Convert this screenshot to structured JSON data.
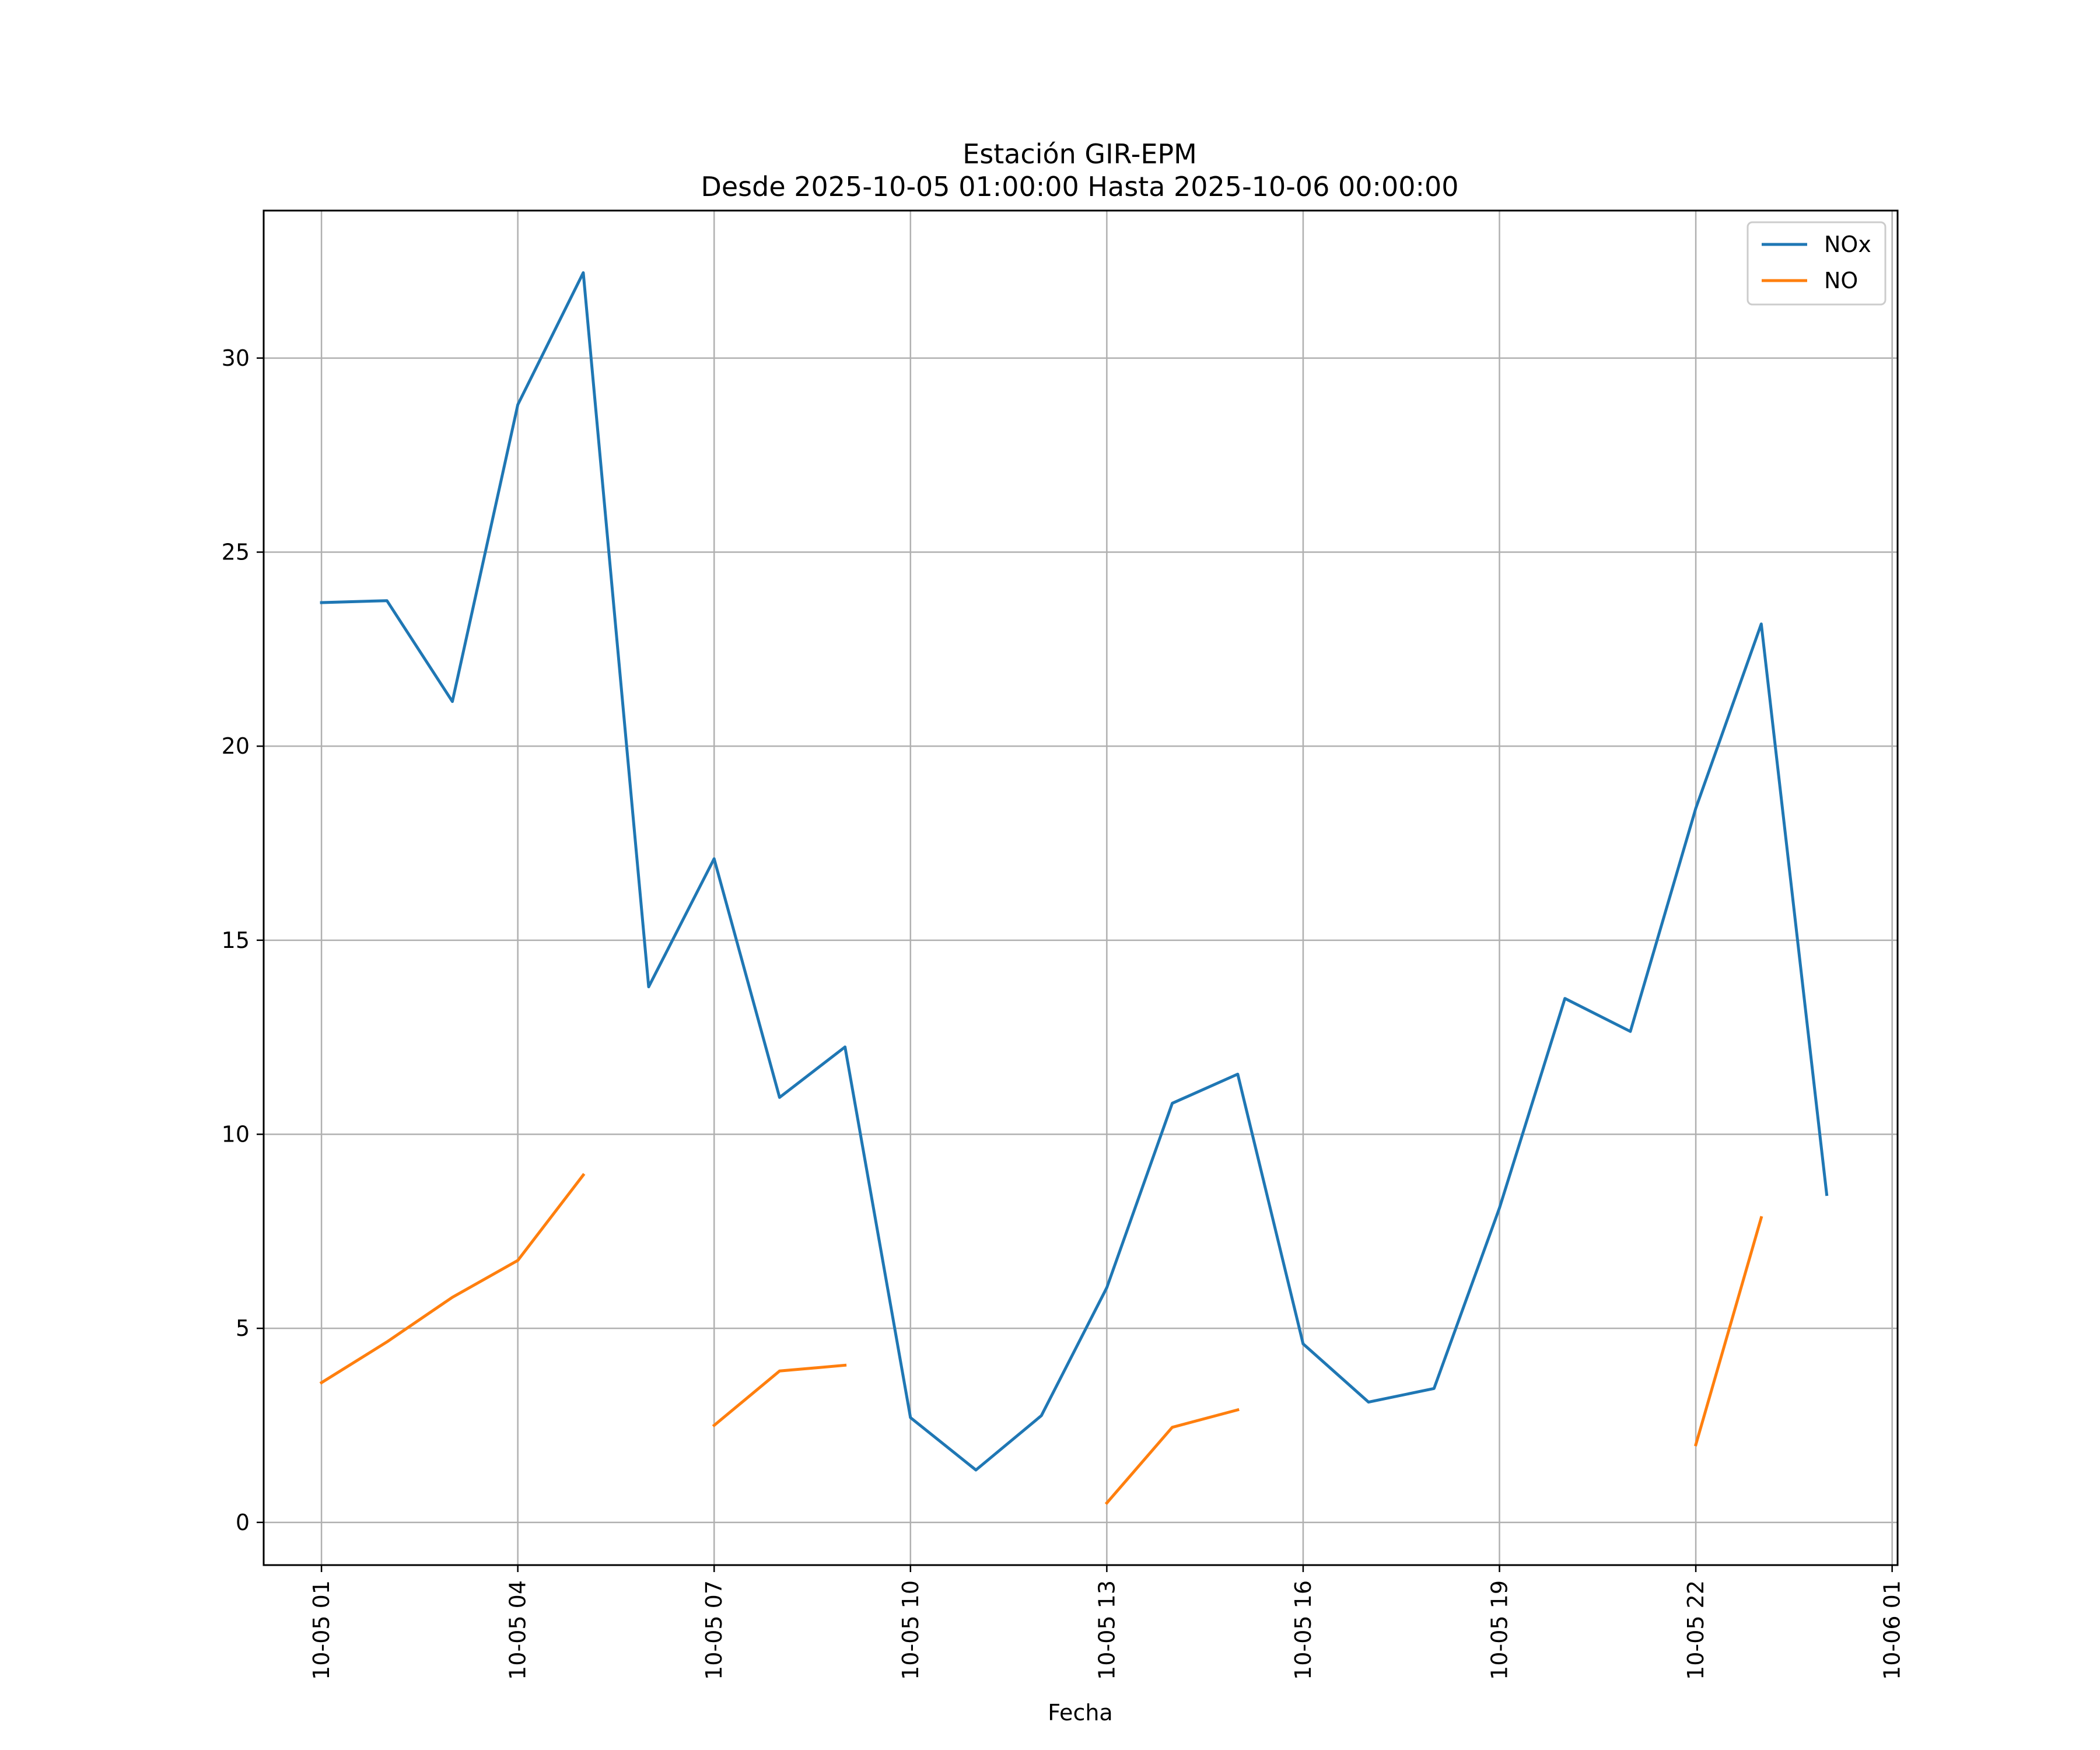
{
  "chart_data": {
    "type": "line",
    "title": "Estación GIR-EPM",
    "subtitle": "Desde 2025-10-05 01:00:00 Hasta 2025-10-06 00:00:00",
    "xlabel": "Fecha",
    "ylabel": "",
    "x": [
      "2025-10-05 01:00",
      "2025-10-05 02:00",
      "2025-10-05 03:00",
      "2025-10-05 04:00",
      "2025-10-05 05:00",
      "2025-10-05 06:00",
      "2025-10-05 07:00",
      "2025-10-05 08:00",
      "2025-10-05 09:00",
      "2025-10-05 10:00",
      "2025-10-05 11:00",
      "2025-10-05 12:00",
      "2025-10-05 13:00",
      "2025-10-05 14:00",
      "2025-10-05 15:00",
      "2025-10-05 16:00",
      "2025-10-05 17:00",
      "2025-10-05 18:00",
      "2025-10-05 19:00",
      "2025-10-05 20:00",
      "2025-10-05 21:00",
      "2025-10-05 22:00",
      "2025-10-05 23:00",
      "2025-10-06 00:00"
    ],
    "xlim": [
      "2025-10-05 00:07",
      "2025-10-06 01:05"
    ],
    "ylim": [
      -1.1,
      33.8
    ],
    "x_ticks": [
      "10-05 01",
      "10-05 04",
      "10-05 07",
      "10-05 10",
      "10-05 13",
      "10-05 16",
      "10-05 19",
      "10-05 22",
      "10-06 01"
    ],
    "y_ticks": [
      0,
      5,
      10,
      15,
      20,
      25,
      30
    ],
    "grid": true,
    "legend_position": "top-right",
    "series": [
      {
        "name": "NOx",
        "color": "#1f77b4",
        "values": [
          23.7,
          23.75,
          21.15,
          28.8,
          32.2,
          13.8,
          17.1,
          10.95,
          12.25,
          2.7,
          1.35,
          2.75,
          6.05,
          10.8,
          11.55,
          4.6,
          3.1,
          3.45,
          8.1,
          13.5,
          12.65,
          18.4,
          23.15,
          8.45
        ]
      },
      {
        "name": "NO",
        "color": "#ff7f0e",
        "values": [
          3.6,
          4.65,
          5.8,
          6.75,
          8.95,
          null,
          2.5,
          3.9,
          4.05,
          null,
          null,
          null,
          0.5,
          2.45,
          2.9,
          null,
          null,
          null,
          null,
          null,
          null,
          2.0,
          7.85,
          null
        ]
      }
    ]
  }
}
